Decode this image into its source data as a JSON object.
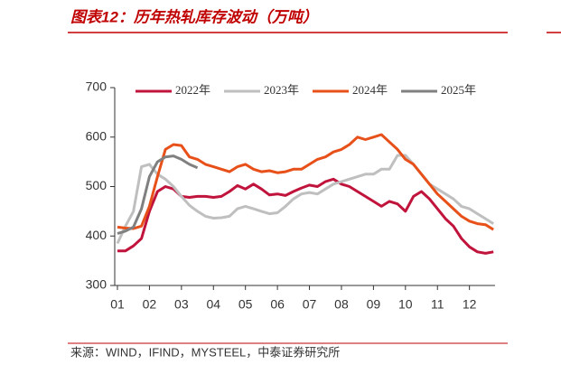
{
  "chart_data": {
    "type": "line",
    "title": "图表12：历年热轧库存波动（万吨）",
    "source": "来源：WIND，IFIND，MYSTEEL，中泰证券研究所",
    "x": [
      1,
      1.25,
      1.5,
      1.75,
      2,
      2.25,
      2.5,
      2.75,
      3,
      3.25,
      3.5,
      3.75,
      4,
      4.25,
      4.5,
      4.75,
      5,
      5.25,
      5.5,
      5.75,
      6,
      6.25,
      6.5,
      6.75,
      7,
      7.25,
      7.5,
      7.75,
      8,
      8.25,
      8.5,
      8.75,
      9,
      9.25,
      9.5,
      9.75,
      10,
      10.25,
      10.5,
      10.75,
      11,
      11.25,
      11.5,
      11.75,
      12,
      12.25,
      12.5,
      12.75
    ],
    "series": [
      {
        "name": "2022年",
        "color": "#c0143c",
        "values": [
          370,
          370,
          380,
          395,
          450,
          490,
          500,
          495,
          480,
          478,
          480,
          480,
          478,
          480,
          490,
          502,
          495,
          505,
          495,
          483,
          485,
          482,
          490,
          497,
          503,
          500,
          510,
          515,
          505,
          500,
          490,
          480,
          470,
          460,
          470,
          465,
          450,
          480,
          490,
          475,
          455,
          435,
          420,
          395,
          378,
          368,
          365,
          368
        ]
      },
      {
        "name": "2023年",
        "color": "#bfbfbf",
        "values": [
          385,
          420,
          450,
          540,
          545,
          525,
          515,
          500,
          480,
          462,
          450,
          440,
          436,
          437,
          440,
          455,
          460,
          455,
          450,
          445,
          447,
          460,
          475,
          485,
          488,
          485,
          495,
          505,
          510,
          515,
          520,
          525,
          525,
          535,
          535,
          563,
          563,
          545,
          525,
          505,
          495,
          485,
          475,
          460,
          455,
          445,
          435,
          425
        ]
      },
      {
        "name": "2024年",
        "color": "#e8501a",
        "values": [
          418,
          416,
          415,
          420,
          460,
          520,
          575,
          585,
          583,
          560,
          555,
          545,
          540,
          535,
          530,
          540,
          545,
          535,
          530,
          532,
          528,
          530,
          535,
          535,
          545,
          555,
          560,
          570,
          575,
          585,
          600,
          595,
          600,
          605,
          590,
          575,
          555,
          545,
          525,
          505,
          485,
          470,
          455,
          440,
          430,
          425,
          423,
          413
        ]
      },
      {
        "name": "2025年",
        "color": "#808080",
        "values": [
          405,
          410,
          418,
          455,
          520,
          550,
          560,
          562,
          555,
          545,
          538,
          null,
          null,
          null,
          null,
          null,
          null,
          null,
          null,
          null,
          null,
          null,
          null,
          null,
          null,
          null,
          null,
          null,
          null,
          null,
          null,
          null,
          null,
          null,
          null,
          null,
          null,
          null,
          null,
          null,
          null,
          null,
          null,
          null,
          null,
          null,
          null,
          null
        ]
      }
    ],
    "xlim": [
      1,
      12.8
    ],
    "xticks": [
      {
        "value": 1,
        "label": "01"
      },
      {
        "value": 2,
        "label": "02"
      },
      {
        "value": 3,
        "label": "03"
      },
      {
        "value": 4,
        "label": "04"
      },
      {
        "value": 5,
        "label": "05"
      },
      {
        "value": 6,
        "label": "06"
      },
      {
        "value": 7,
        "label": "07"
      },
      {
        "value": 8,
        "label": "08"
      },
      {
        "value": 9,
        "label": "09"
      },
      {
        "value": 10,
        "label": "10"
      },
      {
        "value": 11,
        "label": "11"
      },
      {
        "value": 12,
        "label": "12"
      }
    ],
    "ylim": [
      300,
      700
    ],
    "yticks": [
      300,
      400,
      500,
      600,
      700
    ],
    "legend": "top"
  }
}
